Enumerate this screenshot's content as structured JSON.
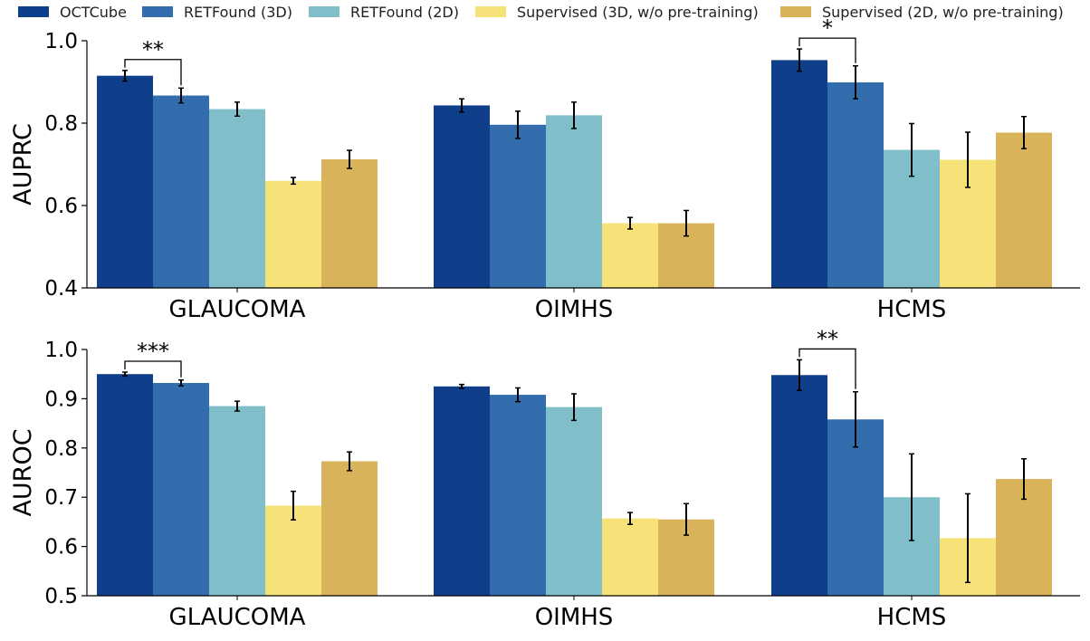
{
  "chart_data": [
    {
      "type": "bar",
      "ylabel": "AUPRC",
      "ylim": [
        0.4,
        1.0
      ],
      "yticks": [
        "0.4",
        "0.6",
        "0.8",
        "1.0"
      ],
      "categories": [
        "GLAUCOMA",
        "OIMHS",
        "HCMS"
      ],
      "series": [
        {
          "name": "OCTCube",
          "values": [
            0.915,
            0.843,
            0.953
          ],
          "errors": [
            0.013,
            0.016,
            0.027
          ]
        },
        {
          "name": "RETFound (3D)",
          "values": [
            0.867,
            0.796,
            0.899
          ],
          "errors": [
            0.018,
            0.033,
            0.04
          ]
        },
        {
          "name": "RETFound (2D)",
          "values": [
            0.834,
            0.819,
            0.735
          ],
          "errors": [
            0.017,
            0.032,
            0.064
          ]
        },
        {
          "name": "Supervised (3D, w/o pre-training)",
          "values": [
            0.66,
            0.557,
            0.711
          ],
          "errors": [
            0.008,
            0.014,
            0.067
          ]
        },
        {
          "name": "Supervised (2D, w/o pre-training)",
          "values": [
            0.712,
            0.557,
            0.777
          ],
          "errors": [
            0.022,
            0.031,
            0.039
          ]
        }
      ],
      "annotations": [
        {
          "category": "GLAUCOMA",
          "between": [
            0,
            1
          ],
          "text": "**"
        },
        {
          "category": "HCMS",
          "between": [
            0,
            1
          ],
          "text": "*"
        }
      ]
    },
    {
      "type": "bar",
      "ylabel": "AUROC",
      "ylim": [
        0.5,
        1.0
      ],
      "yticks": [
        "0.5",
        "0.6",
        "0.7",
        "0.8",
        "0.9",
        "1.0"
      ],
      "categories": [
        "GLAUCOMA",
        "OIMHS",
        "HCMS"
      ],
      "series": [
        {
          "name": "OCTCube",
          "values": [
            0.95,
            0.925,
            0.948
          ],
          "errors": [
            0.004,
            0.004,
            0.031
          ]
        },
        {
          "name": "RETFound (3D)",
          "values": [
            0.932,
            0.908,
            0.858
          ],
          "errors": [
            0.006,
            0.014,
            0.056
          ]
        },
        {
          "name": "RETFound (2D)",
          "values": [
            0.885,
            0.883,
            0.7
          ],
          "errors": [
            0.01,
            0.027,
            0.088
          ]
        },
        {
          "name": "Supervised (3D, w/o pre-training)",
          "values": [
            0.683,
            0.657,
            0.617
          ],
          "errors": [
            0.029,
            0.012,
            0.09
          ]
        },
        {
          "name": "Supervised (2D, w/o pre-training)",
          "values": [
            0.773,
            0.655,
            0.737
          ],
          "errors": [
            0.019,
            0.032,
            0.041
          ]
        }
      ],
      "annotations": [
        {
          "category": "GLAUCOMA",
          "between": [
            0,
            1
          ],
          "text": "***"
        },
        {
          "category": "HCMS",
          "between": [
            0,
            1
          ],
          "text": "**"
        }
      ]
    }
  ],
  "legend": [
    {
      "label": "OCTCube",
      "color": "#0f3e8a"
    },
    {
      "label": "RETFound (3D)",
      "color": "#336dae"
    },
    {
      "label": "RETFound (2D)",
      "color": "#80bec9"
    },
    {
      "label": "Supervised (3D, w/o pre-training)",
      "color": "#f6e279"
    },
    {
      "label": "Supervised (2D, w/o pre-training)",
      "color": "#d8b35a"
    }
  ]
}
